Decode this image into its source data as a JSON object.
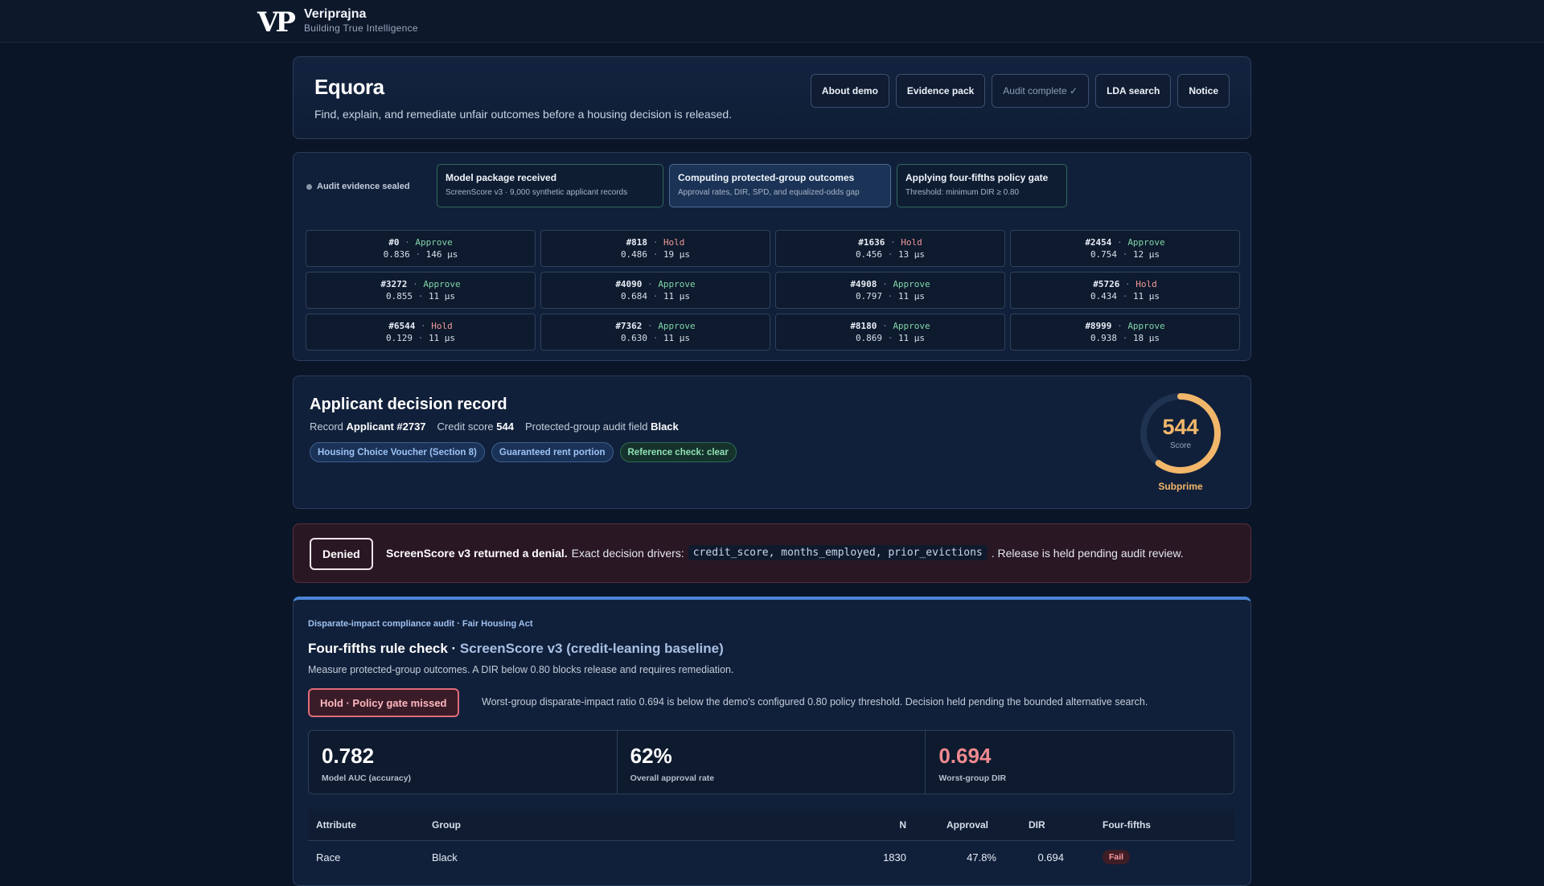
{
  "brand": {
    "name": "Veriprajna",
    "tagline": "Building True Intelligence",
    "logo_text": "VP"
  },
  "header": {
    "title": "Equora",
    "subtitle": "Find, explain, and remediate unfair outcomes before a housing decision is released.",
    "buttons": [
      "About demo",
      "Evidence pack",
      "Audit complete ✓",
      "LDA search",
      "Notice"
    ]
  },
  "pipeline": {
    "status": "Audit evidence sealed",
    "steps": [
      {
        "title": "Model package received",
        "detail": "ScreenScore v3 · 9,000 synthetic applicant records"
      },
      {
        "title": "Computing protected-group outcomes",
        "detail": "Approval rates, DIR, SPD, and equalized-odds gap"
      },
      {
        "title": "Applying four-fifths policy gate",
        "detail": "Threshold: minimum DIR ≥ 0.80"
      }
    ],
    "records": [
      {
        "id": "#0",
        "decision": "Approve",
        "score": "0.836",
        "latency": "146 μs"
      },
      {
        "id": "#818",
        "decision": "Hold",
        "score": "0.486",
        "latency": "19 μs"
      },
      {
        "id": "#1636",
        "decision": "Hold",
        "score": "0.456",
        "latency": "13 μs"
      },
      {
        "id": "#2454",
        "decision": "Approve",
        "score": "0.754",
        "latency": "12 μs"
      },
      {
        "id": "#3272",
        "decision": "Approve",
        "score": "0.855",
        "latency": "11 μs"
      },
      {
        "id": "#4090",
        "decision": "Approve",
        "score": "0.684",
        "latency": "11 μs"
      },
      {
        "id": "#4908",
        "decision": "Approve",
        "score": "0.797",
        "latency": "11 μs"
      },
      {
        "id": "#5726",
        "decision": "Hold",
        "score": "0.434",
        "latency": "11 μs"
      },
      {
        "id": "#6544",
        "decision": "Hold",
        "score": "0.129",
        "latency": "11 μs"
      },
      {
        "id": "#7362",
        "decision": "Approve",
        "score": "0.630",
        "latency": "11 μs"
      },
      {
        "id": "#8180",
        "decision": "Approve",
        "score": "0.869",
        "latency": "11 μs"
      },
      {
        "id": "#8999",
        "decision": "Approve",
        "score": "0.938",
        "latency": "18 μs"
      }
    ]
  },
  "applicant": {
    "title": "Applicant decision record",
    "record_label": "Record",
    "record_value": "Applicant #2737",
    "credit_label": "Credit score",
    "credit_value": "544",
    "field_label": "Protected-group audit field",
    "field_value": "Black",
    "tags": [
      "Housing Choice Voucher (Section 8)",
      "Guaranteed rent portion",
      "Reference check: clear"
    ],
    "gauge": {
      "value": "544",
      "label": "Score",
      "category": "Subprime",
      "fill_fraction": 0.6,
      "color": "#f2b76a"
    }
  },
  "denial": {
    "badge": "Denied",
    "lead": "ScreenScore v3 returned a denial.",
    "drivers_label": "Exact decision drivers:",
    "drivers": "credit_score, months_employed, prior_evictions",
    "tail": ". Release is held pending audit review."
  },
  "audit": {
    "eyebrow": "Disparate-impact compliance audit · Fair Housing Act",
    "title": "Four-fifths rule check ·",
    "title_model": "ScreenScore v3 (credit-leaning baseline)",
    "description": "Measure protected-group outcomes. A DIR below 0.80 blocks release and requires remediation.",
    "hold_badge": "Hold · Policy gate missed",
    "hold_text": "Worst-group disparate-impact ratio 0.694 is below the demo's configured 0.80 policy threshold. Decision held pending the bounded alternative search.",
    "metrics": [
      {
        "value": "0.782",
        "label": "Model AUC (accuracy)"
      },
      {
        "value": "62%",
        "label": "Overall approval rate"
      },
      {
        "value": "0.694",
        "label": "Worst-group DIR"
      }
    ],
    "table": {
      "headers": [
        "Attribute",
        "Group",
        "N",
        "Approval",
        "DIR",
        "Four-fifths"
      ],
      "rows": [
        {
          "attribute": "Race",
          "group": "Black",
          "n": "1830",
          "approval": "47.8%",
          "dir": "0.694",
          "status": "Fail"
        }
      ]
    }
  }
}
